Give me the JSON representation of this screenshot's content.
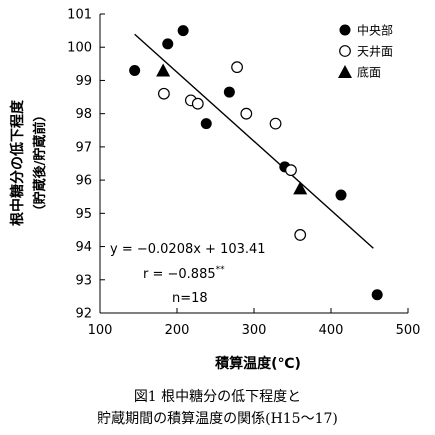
{
  "chart_data": {
    "type": "scatter",
    "ylabel": "根中糖分の低下程度",
    "ylabel2": "（貯蔵後/貯蔵前）",
    "xlabel": "積算温度(℃)",
    "xlim": [
      100,
      500
    ],
    "ylim": [
      92,
      101
    ],
    "xticks": [
      100,
      200,
      300,
      400,
      500
    ],
    "yticks": [
      92,
      93,
      94,
      95,
      96,
      97,
      98,
      99,
      100,
      101
    ],
    "series": [
      {
        "name": "中央部",
        "marker": "filled-circle",
        "points": [
          [
            145,
            99.3
          ],
          [
            188,
            100.1
          ],
          [
            208,
            100.5
          ],
          [
            238,
            97.7
          ],
          [
            268,
            98.65
          ],
          [
            340,
            96.4
          ],
          [
            413,
            95.55
          ],
          [
            460,
            92.55
          ]
        ]
      },
      {
        "name": "天井面",
        "marker": "open-circle",
        "points": [
          [
            183,
            98.6
          ],
          [
            218,
            98.4
          ],
          [
            227,
            98.3
          ],
          [
            278,
            99.4
          ],
          [
            290,
            98.0
          ],
          [
            328,
            97.7
          ],
          [
            348,
            96.3
          ],
          [
            360,
            94.35
          ]
        ]
      },
      {
        "name": "底面",
        "marker": "filled-triangle",
        "points": [
          [
            182,
            99.3
          ],
          [
            360,
            95.75
          ]
        ]
      }
    ],
    "regression": {
      "x": [
        145,
        455
      ],
      "y": [
        100.39,
        93.95
      ]
    },
    "equation": "y = −0.0208x + 103.41",
    "r_text": "r = −0.885",
    "r_sup": "**",
    "n_text": "n=18",
    "legend_position": "top-right",
    "grid": false
  },
  "caption": {
    "line1": "図1 根中糖分の低下程度と",
    "line2": "貯蔵期間の積算温度の関係(H15～17)"
  }
}
